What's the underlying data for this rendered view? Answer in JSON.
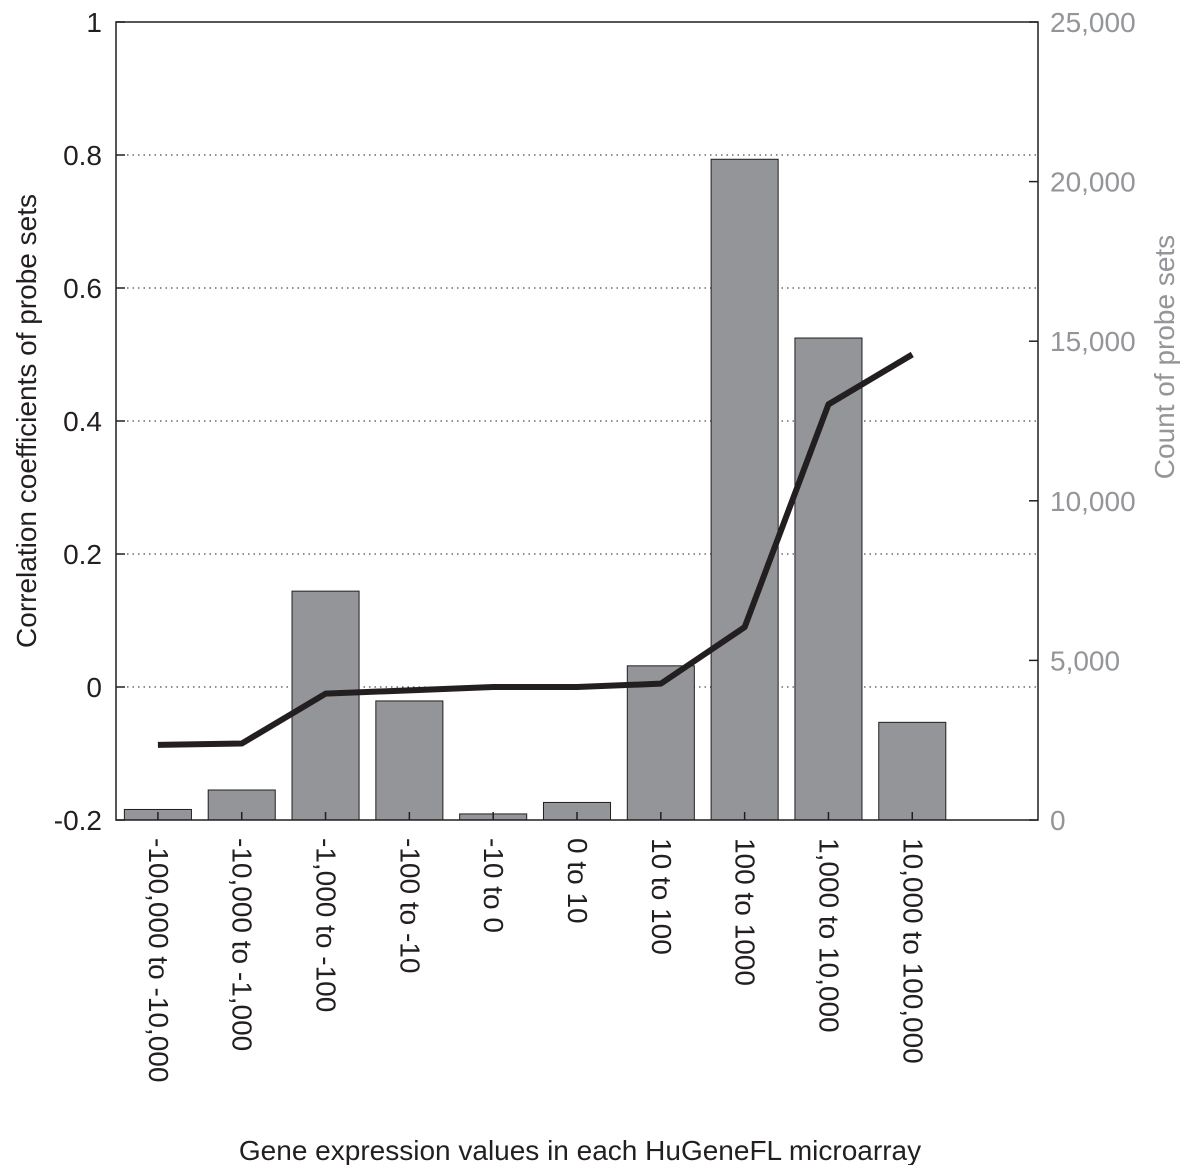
{
  "chart_data": {
    "type": "bar",
    "categories": [
      "-100,000 to -10,000",
      "-10,000 to -1,000",
      "-1,000 to -100",
      "-100 to -10",
      "-10 to 0",
      "0 to 10",
      "10 to 100",
      "100 to 1000",
      "1,000 to 10,000",
      "10,000 to 100,000"
    ],
    "bar_series": {
      "axis": "right",
      "values": [
        330,
        940,
        7170,
        3730,
        190,
        550,
        4830,
        20700,
        15100,
        3060
      ]
    },
    "line_series": {
      "axis": "left",
      "values": [
        -0.087,
        -0.085,
        -0.01,
        -0.005,
        0.0,
        0.0,
        0.005,
        0.09,
        0.425,
        0.5
      ]
    },
    "xlabel": "Gene expression values in each HuGeneFL microarray",
    "ylabel_left": "Correlation coefficients of probe sets",
    "ylabel_right": "Count of probe sets",
    "ylim_left": [
      -0.2,
      1
    ],
    "ylim_right": [
      0,
      25000
    ],
    "yticks_left": [
      -0.2,
      0,
      0.2,
      0.4,
      0.6,
      0.8,
      1
    ],
    "yticks_left_labels": [
      "-0.2",
      "0",
      "0.2",
      "0.4",
      "0.6",
      "0.8",
      "1"
    ],
    "yticks_right": [
      0,
      5000,
      10000,
      15000,
      20000,
      25000
    ],
    "yticks_right_labels": [
      "0",
      "5,000",
      "10,000",
      "15,000",
      "20,000",
      "25,000"
    ],
    "xlim_slots": 11,
    "grid": "horizontal-dotted",
    "colors": {
      "bar_fill": "#939598",
      "bar_stroke": "#231f20",
      "line": "#231f20",
      "left_axis_text": "#231f20",
      "right_axis_text": "#939598"
    }
  }
}
